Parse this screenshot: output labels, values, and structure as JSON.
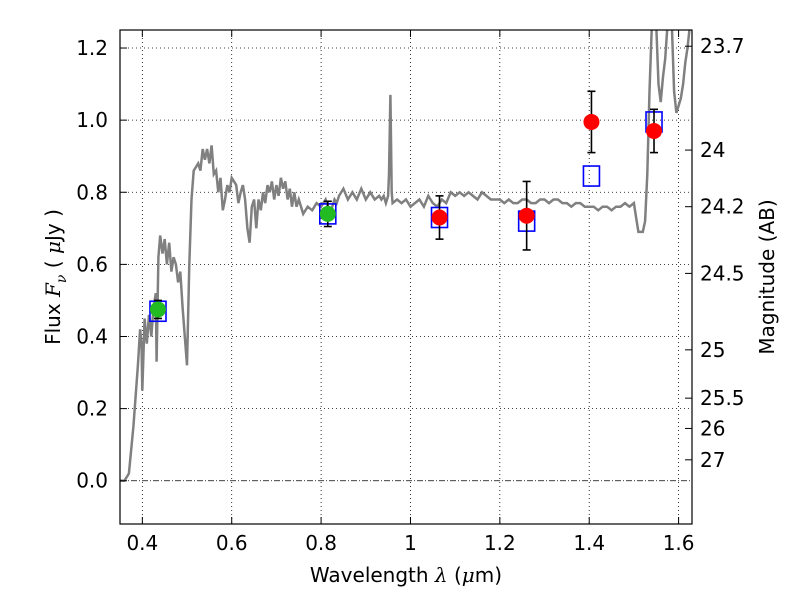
{
  "chart_data": {
    "type": "scatter",
    "title": "",
    "xlabel": "Wavelength  λ (μm)",
    "ylabel": "Flux  F_ν  ( μJy )",
    "ylabel_right": "Magnitude (AB)",
    "xlim": [
      0.35,
      1.63
    ],
    "ylim": [
      -0.12,
      1.25
    ],
    "grid": true,
    "x_ticks": [
      0.4,
      0.6,
      0.8,
      1.0,
      1.2,
      1.4,
      1.6
    ],
    "x_tick_labels": [
      "0.4",
      "0.6",
      "0.8",
      "1",
      "1.2",
      "1.4",
      "1.6"
    ],
    "y_ticks": [
      0.0,
      0.2,
      0.4,
      0.6,
      0.8,
      1.0,
      1.2
    ],
    "y_tick_labels": [
      "0.0",
      "0.2",
      "0.4",
      "0.6",
      "0.8",
      "1.0",
      "1.2"
    ],
    "right_ticks": [
      {
        "flux": 1.205,
        "label": "23.7"
      },
      {
        "flux": 0.917,
        "label": "24"
      },
      {
        "flux": 0.76,
        "label": "24.2"
      },
      {
        "flux": 0.575,
        "label": "24.5"
      },
      {
        "flux": 0.363,
        "label": "25"
      },
      {
        "flux": 0.229,
        "label": "25.5"
      },
      {
        "flux": 0.145,
        "label": "26"
      },
      {
        "flux": 0.058,
        "label": "27"
      }
    ],
    "series": [
      {
        "kind": "model_spectrum",
        "color": "#808080",
        "points": [
          [
            0.35,
            0.0
          ],
          [
            0.36,
            0.0
          ],
          [
            0.37,
            0.02
          ],
          [
            0.38,
            0.15
          ],
          [
            0.39,
            0.32
          ],
          [
            0.395,
            0.42
          ],
          [
            0.398,
            0.38
          ],
          [
            0.4,
            0.25
          ],
          [
            0.405,
            0.45
          ],
          [
            0.41,
            0.38
          ],
          [
            0.415,
            0.46
          ],
          [
            0.42,
            0.4
          ],
          [
            0.425,
            0.48
          ],
          [
            0.43,
            0.52
          ],
          [
            0.432,
            0.33
          ],
          [
            0.436,
            0.62
          ],
          [
            0.44,
            0.68
          ],
          [
            0.445,
            0.63
          ],
          [
            0.45,
            0.67
          ],
          [
            0.455,
            0.6
          ],
          [
            0.46,
            0.66
          ],
          [
            0.465,
            0.58
          ],
          [
            0.47,
            0.62
          ],
          [
            0.475,
            0.6
          ],
          [
            0.48,
            0.55
          ],
          [
            0.485,
            0.58
          ],
          [
            0.49,
            0.48
          ],
          [
            0.495,
            0.4
          ],
          [
            0.5,
            0.32
          ],
          [
            0.505,
            0.6
          ],
          [
            0.51,
            0.78
          ],
          [
            0.515,
            0.86
          ],
          [
            0.52,
            0.87
          ],
          [
            0.525,
            0.88
          ],
          [
            0.53,
            0.86
          ],
          [
            0.535,
            0.92
          ],
          [
            0.54,
            0.89
          ],
          [
            0.545,
            0.92
          ],
          [
            0.55,
            0.88
          ],
          [
            0.555,
            0.93
          ],
          [
            0.56,
            0.85
          ],
          [
            0.565,
            0.86
          ],
          [
            0.57,
            0.8
          ],
          [
            0.575,
            0.84
          ],
          [
            0.58,
            0.75
          ],
          [
            0.585,
            0.78
          ],
          [
            0.59,
            0.82
          ],
          [
            0.595,
            0.8
          ],
          [
            0.6,
            0.84
          ],
          [
            0.605,
            0.83
          ],
          [
            0.61,
            0.82
          ],
          [
            0.615,
            0.77
          ],
          [
            0.62,
            0.8
          ],
          [
            0.625,
            0.82
          ],
          [
            0.63,
            0.78
          ],
          [
            0.635,
            0.7
          ],
          [
            0.64,
            0.66
          ],
          [
            0.645,
            0.76
          ],
          [
            0.65,
            0.78
          ],
          [
            0.655,
            0.7
          ],
          [
            0.66,
            0.78
          ],
          [
            0.665,
            0.75
          ],
          [
            0.67,
            0.8
          ],
          [
            0.675,
            0.77
          ],
          [
            0.68,
            0.82
          ],
          [
            0.685,
            0.8
          ],
          [
            0.69,
            0.83
          ],
          [
            0.695,
            0.78
          ],
          [
            0.7,
            0.82
          ],
          [
            0.705,
            0.79
          ],
          [
            0.71,
            0.84
          ],
          [
            0.715,
            0.81
          ],
          [
            0.72,
            0.83
          ],
          [
            0.725,
            0.78
          ],
          [
            0.73,
            0.81
          ],
          [
            0.735,
            0.76
          ],
          [
            0.74,
            0.8
          ],
          [
            0.745,
            0.76
          ],
          [
            0.75,
            0.78
          ],
          [
            0.76,
            0.74
          ],
          [
            0.77,
            0.76
          ],
          [
            0.78,
            0.75
          ],
          [
            0.79,
            0.77
          ],
          [
            0.8,
            0.76
          ],
          [
            0.81,
            0.78
          ],
          [
            0.82,
            0.74
          ],
          [
            0.83,
            0.78
          ],
          [
            0.835,
            0.77
          ],
          [
            0.84,
            0.79
          ],
          [
            0.85,
            0.81
          ],
          [
            0.86,
            0.78
          ],
          [
            0.87,
            0.8
          ],
          [
            0.88,
            0.78
          ],
          [
            0.89,
            0.81
          ],
          [
            0.9,
            0.78
          ],
          [
            0.91,
            0.8
          ],
          [
            0.92,
            0.78
          ],
          [
            0.93,
            0.79
          ],
          [
            0.935,
            0.78
          ],
          [
            0.94,
            0.79
          ],
          [
            0.945,
            0.77
          ],
          [
            0.95,
            0.79
          ],
          [
            0.952,
            0.85
          ],
          [
            0.955,
            1.07
          ],
          [
            0.958,
            0.8
          ],
          [
            0.96,
            0.77
          ],
          [
            0.97,
            0.78
          ],
          [
            0.98,
            0.77
          ],
          [
            0.99,
            0.78
          ],
          [
            1.0,
            0.76
          ],
          [
            1.01,
            0.77
          ],
          [
            1.02,
            0.78
          ],
          [
            1.03,
            0.76
          ],
          [
            1.04,
            0.79
          ],
          [
            1.05,
            0.77
          ],
          [
            1.06,
            0.76
          ],
          [
            1.07,
            0.78
          ],
          [
            1.08,
            0.77
          ],
          [
            1.09,
            0.8
          ],
          [
            1.1,
            0.79
          ],
          [
            1.11,
            0.8
          ],
          [
            1.12,
            0.79
          ],
          [
            1.13,
            0.8
          ],
          [
            1.14,
            0.79
          ],
          [
            1.15,
            0.78
          ],
          [
            1.16,
            0.8
          ],
          [
            1.17,
            0.79
          ],
          [
            1.18,
            0.78
          ],
          [
            1.19,
            0.78
          ],
          [
            1.2,
            0.78
          ],
          [
            1.21,
            0.77
          ],
          [
            1.22,
            0.78
          ],
          [
            1.23,
            0.77
          ],
          [
            1.24,
            0.77
          ],
          [
            1.25,
            0.78
          ],
          [
            1.26,
            0.78
          ],
          [
            1.27,
            0.77
          ],
          [
            1.28,
            0.77
          ],
          [
            1.29,
            0.78
          ],
          [
            1.3,
            0.78
          ],
          [
            1.31,
            0.77
          ],
          [
            1.32,
            0.78
          ],
          [
            1.33,
            0.78
          ],
          [
            1.34,
            0.77
          ],
          [
            1.35,
            0.77
          ],
          [
            1.36,
            0.76
          ],
          [
            1.37,
            0.77
          ],
          [
            1.38,
            0.77
          ],
          [
            1.39,
            0.76
          ],
          [
            1.4,
            0.76
          ],
          [
            1.41,
            0.76
          ],
          [
            1.42,
            0.75
          ],
          [
            1.43,
            0.76
          ],
          [
            1.44,
            0.76
          ],
          [
            1.45,
            0.75
          ],
          [
            1.46,
            0.76
          ],
          [
            1.47,
            0.76
          ],
          [
            1.48,
            0.77
          ],
          [
            1.49,
            0.76
          ],
          [
            1.5,
            0.77
          ],
          [
            1.505,
            0.73
          ],
          [
            1.51,
            0.69
          ],
          [
            1.52,
            0.69
          ],
          [
            1.525,
            0.72
          ],
          [
            1.53,
            0.85
          ],
          [
            1.535,
            1.08
          ],
          [
            1.54,
            1.26
          ],
          [
            1.545,
            1.26
          ],
          [
            1.55,
            1.26
          ],
          [
            1.555,
            1.1
          ],
          [
            1.56,
            1.05
          ],
          [
            1.565,
            1.12
          ],
          [
            1.57,
            1.17
          ],
          [
            1.575,
            1.26
          ],
          [
            1.58,
            1.26
          ],
          [
            1.585,
            1.26
          ],
          [
            1.59,
            1.08
          ],
          [
            1.595,
            1.02
          ],
          [
            1.6,
            1.04
          ],
          [
            1.605,
            1.06
          ],
          [
            1.61,
            1.1
          ],
          [
            1.615,
            1.16
          ],
          [
            1.62,
            1.2
          ],
          [
            1.625,
            1.26
          ]
        ]
      },
      {
        "kind": "model_photometry",
        "marker": "open-square",
        "color": "#0000ff",
        "x": [
          0.435,
          0.815,
          1.065,
          1.26,
          1.405,
          1.545
        ],
        "y": [
          0.47,
          0.74,
          0.73,
          0.72,
          0.845,
          0.995
        ]
      },
      {
        "kind": "observed_green",
        "marker": "filled-circle",
        "color": "#22bb22",
        "x": [
          0.435,
          0.815
        ],
        "y": [
          0.475,
          0.74
        ],
        "err": [
          0.025,
          0.035
        ]
      },
      {
        "kind": "observed_red",
        "marker": "filled-circle",
        "color": "#ff0000",
        "x": [
          1.065,
          1.26,
          1.405,
          1.545
        ],
        "y": [
          0.73,
          0.735,
          0.995,
          0.97
        ],
        "err": [
          0.06,
          0.095,
          0.085,
          0.06
        ]
      }
    ]
  }
}
